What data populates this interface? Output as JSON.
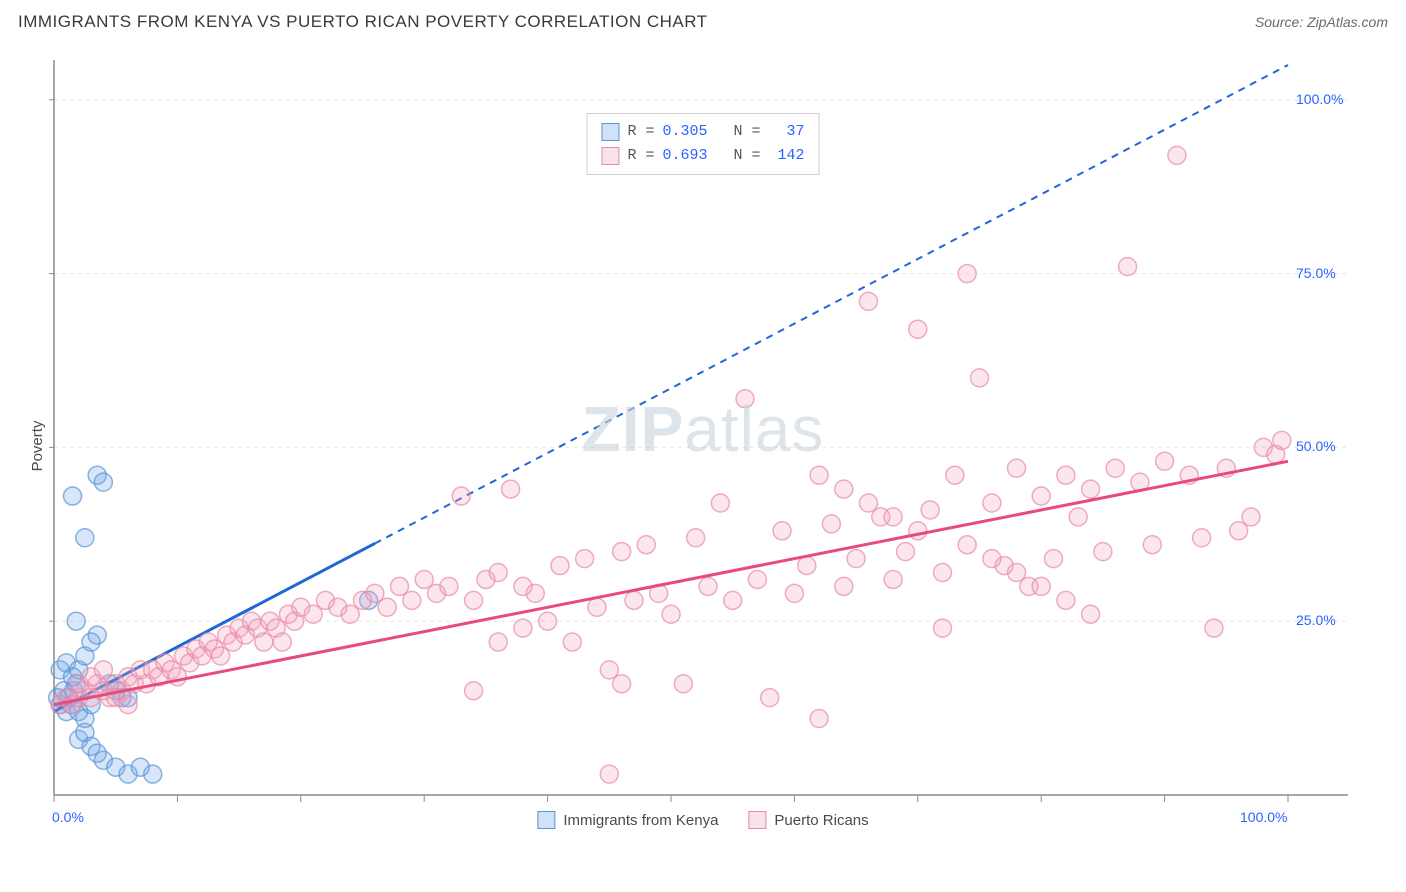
{
  "title": "IMMIGRANTS FROM KENYA VS PUERTO RICAN POVERTY CORRELATION CHART",
  "source": "Source: ZipAtlas.com",
  "y_label": "Poverty",
  "watermark_bold": "ZIP",
  "watermark_light": "atlas",
  "chart": {
    "type": "scatter",
    "background_color": "#ffffff",
    "grid_color": "#e8e8e8",
    "axis_color": "#8a8a8a",
    "tick_label_color": "#2962ff",
    "xlim": [
      0,
      100
    ],
    "ylim": [
      0,
      105
    ],
    "x_ticks": [
      0,
      10,
      20,
      30,
      40,
      50,
      60,
      70,
      80,
      90,
      100
    ],
    "y_ticks": [
      25,
      50,
      75,
      100
    ],
    "x_tick_labels": {
      "0": "0.0%",
      "100": "100.0%"
    },
    "y_tick_labels": {
      "25": "25.0%",
      "50": "50.0%",
      "75": "75.0%",
      "100": "100.0%"
    },
    "marker_radius": 9,
    "marker_fill_opacity": 0.28,
    "marker_stroke_width": 1.5,
    "trend_line_width": 3,
    "dashed_pattern": "7,6"
  },
  "series": [
    {
      "name": "Immigrants from Kenya",
      "color": "#6fa8e8",
      "stroke": "#5a93d6",
      "trend_color": "#1f66d6",
      "R": "0.305",
      "N": "37",
      "trend": {
        "x1": 0,
        "y1": 12,
        "x2": 100,
        "y2": 105,
        "solid_to_x": 26
      },
      "points": [
        [
          0.3,
          14
        ],
        [
          0.5,
          13
        ],
        [
          0.8,
          15
        ],
        [
          1.0,
          12
        ],
        [
          1.2,
          14
        ],
        [
          1.4,
          13
        ],
        [
          1.6,
          15
        ],
        [
          1.8,
          16
        ],
        [
          0.5,
          18
        ],
        [
          1.0,
          19
        ],
        [
          1.5,
          17
        ],
        [
          2.0,
          18
        ],
        [
          2.5,
          20
        ],
        [
          3.0,
          22
        ],
        [
          3.5,
          23
        ],
        [
          1.8,
          25
        ],
        [
          1.5,
          43
        ],
        [
          2.5,
          37
        ],
        [
          3.5,
          46
        ],
        [
          4.0,
          45
        ],
        [
          2.0,
          8
        ],
        [
          2.5,
          9
        ],
        [
          3.0,
          7
        ],
        [
          3.5,
          6
        ],
        [
          4.0,
          5
        ],
        [
          5.0,
          4
        ],
        [
          6.0,
          3
        ],
        [
          7.0,
          4
        ],
        [
          8.0,
          3
        ],
        [
          4.5,
          16
        ],
        [
          5.0,
          15
        ],
        [
          5.5,
          14
        ],
        [
          6.0,
          14
        ],
        [
          2.0,
          12
        ],
        [
          2.5,
          11
        ],
        [
          3.0,
          13
        ],
        [
          25.5,
          28
        ]
      ]
    },
    {
      "name": "Puerto Ricans",
      "color": "#f4a6be",
      "stroke": "#e88aa6",
      "trend_color": "#e84a7a",
      "R": "0.693",
      "N": "142",
      "trend": {
        "x1": 0,
        "y1": 13,
        "x2": 100,
        "y2": 48,
        "solid_to_x": 100
      },
      "points": [
        [
          0.5,
          13
        ],
        [
          1,
          14
        ],
        [
          1.5,
          13
        ],
        [
          2,
          14
        ],
        [
          2.5,
          15
        ],
        [
          3,
          14
        ],
        [
          3.5,
          16
        ],
        [
          4,
          15
        ],
        [
          4.5,
          14
        ],
        [
          5,
          16
        ],
        [
          5.5,
          15
        ],
        [
          6,
          17
        ],
        [
          6.5,
          16
        ],
        [
          7,
          18
        ],
        [
          7.5,
          16
        ],
        [
          8,
          18
        ],
        [
          8.5,
          17
        ],
        [
          9,
          19
        ],
        [
          9.5,
          18
        ],
        [
          10,
          17
        ],
        [
          10.5,
          20
        ],
        [
          11,
          19
        ],
        [
          11.5,
          21
        ],
        [
          12,
          20
        ],
        [
          12.5,
          22
        ],
        [
          13,
          21
        ],
        [
          13.5,
          20
        ],
        [
          14,
          23
        ],
        [
          14.5,
          22
        ],
        [
          15,
          24
        ],
        [
          15.5,
          23
        ],
        [
          16,
          25
        ],
        [
          16.5,
          24
        ],
        [
          17,
          22
        ],
        [
          17.5,
          25
        ],
        [
          18,
          24
        ],
        [
          18.5,
          22
        ],
        [
          19,
          26
        ],
        [
          19.5,
          25
        ],
        [
          20,
          27
        ],
        [
          21,
          26
        ],
        [
          22,
          28
        ],
        [
          23,
          27
        ],
        [
          24,
          26
        ],
        [
          25,
          28
        ],
        [
          26,
          29
        ],
        [
          27,
          27
        ],
        [
          28,
          30
        ],
        [
          29,
          28
        ],
        [
          30,
          31
        ],
        [
          31,
          29
        ],
        [
          32,
          30
        ],
        [
          33,
          43
        ],
        [
          34,
          28
        ],
        [
          35,
          31
        ],
        [
          36,
          32
        ],
        [
          37,
          44
        ],
        [
          38,
          30
        ],
        [
          39,
          29
        ],
        [
          40,
          25
        ],
        [
          41,
          33
        ],
        [
          42,
          22
        ],
        [
          43,
          34
        ],
        [
          44,
          27
        ],
        [
          45,
          18
        ],
        [
          46,
          35
        ],
        [
          47,
          28
        ],
        [
          48,
          36
        ],
        [
          49,
          29
        ],
        [
          50,
          26
        ],
        [
          51,
          16
        ],
        [
          52,
          37
        ],
        [
          53,
          30
        ],
        [
          54,
          42
        ],
        [
          55,
          28
        ],
        [
          56,
          57
        ],
        [
          57,
          31
        ],
        [
          58,
          14
        ],
        [
          59,
          38
        ],
        [
          60,
          29
        ],
        [
          61,
          33
        ],
        [
          62,
          11
        ],
        [
          63,
          39
        ],
        [
          64,
          30
        ],
        [
          65,
          34
        ],
        [
          66,
          71
        ],
        [
          67,
          40
        ],
        [
          68,
          31
        ],
        [
          69,
          35
        ],
        [
          70,
          67
        ],
        [
          71,
          41
        ],
        [
          72,
          32
        ],
        [
          73,
          46
        ],
        [
          74,
          75
        ],
        [
          75,
          60
        ],
        [
          76,
          42
        ],
        [
          77,
          33
        ],
        [
          78,
          47
        ],
        [
          79,
          30
        ],
        [
          80,
          43
        ],
        [
          81,
          34
        ],
        [
          82,
          46
        ],
        [
          83,
          40
        ],
        [
          84,
          44
        ],
        [
          85,
          35
        ],
        [
          86,
          47
        ],
        [
          87,
          76
        ],
        [
          88,
          45
        ],
        [
          89,
          36
        ],
        [
          90,
          48
        ],
        [
          91,
          92
        ],
        [
          92,
          46
        ],
        [
          93,
          37
        ],
        [
          94,
          24
        ],
        [
          95,
          47
        ],
        [
          96,
          38
        ],
        [
          97,
          40
        ],
        [
          98,
          50
        ],
        [
          99,
          49
        ],
        [
          99.5,
          51
        ],
        [
          45,
          3
        ],
        [
          46,
          16
        ],
        [
          34,
          15
        ],
        [
          2,
          16
        ],
        [
          3,
          17
        ],
        [
          4,
          18
        ],
        [
          5,
          14
        ],
        [
          6,
          13
        ],
        [
          36,
          22
        ],
        [
          38,
          24
        ],
        [
          62,
          46
        ],
        [
          64,
          44
        ],
        [
          66,
          42
        ],
        [
          68,
          40
        ],
        [
          70,
          38
        ],
        [
          72,
          24
        ],
        [
          74,
          36
        ],
        [
          76,
          34
        ],
        [
          78,
          32
        ],
        [
          80,
          30
        ],
        [
          82,
          28
        ],
        [
          84,
          26
        ]
      ]
    }
  ],
  "stats_legend_labels": {
    "r": "R =",
    "n": "N ="
  },
  "series_legend_labels": [
    "Immigrants from Kenya",
    "Puerto Ricans"
  ]
}
